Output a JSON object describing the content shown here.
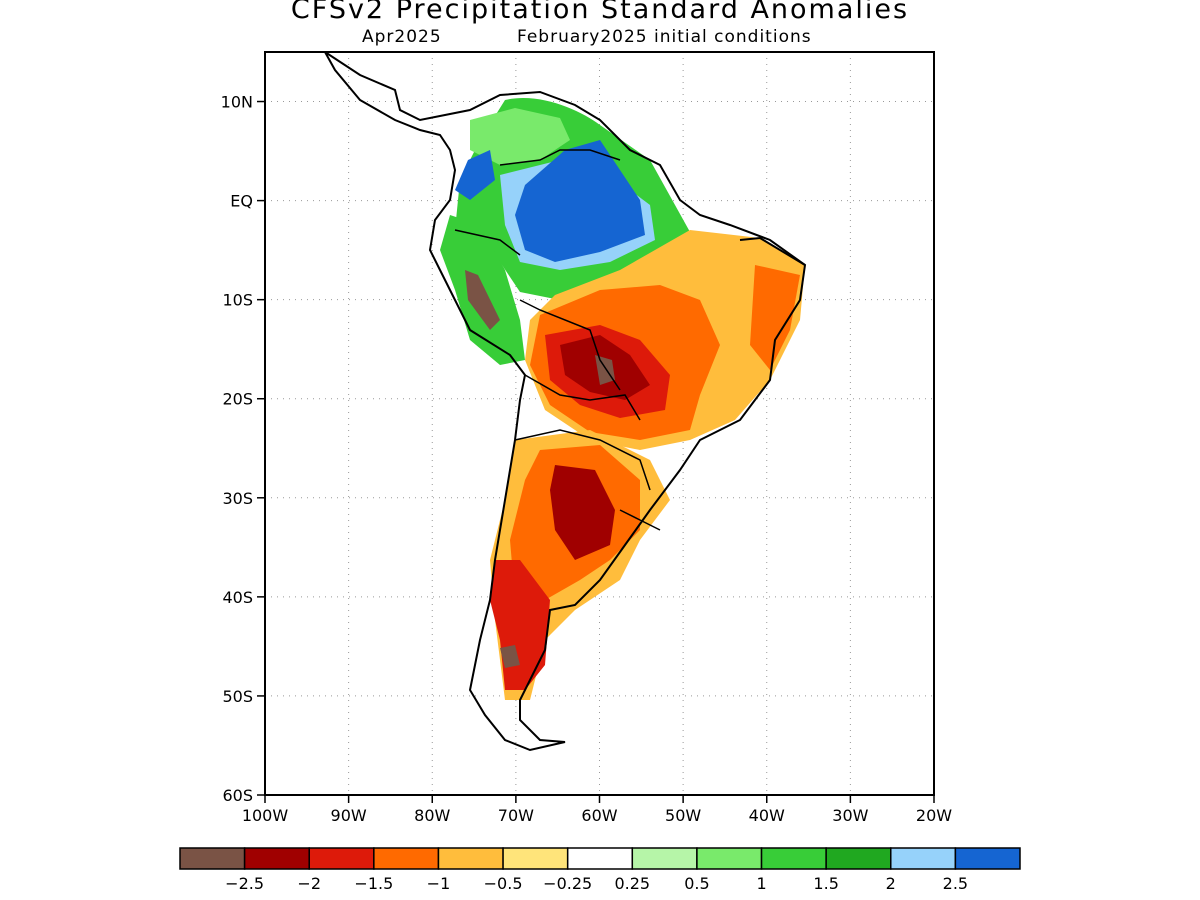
{
  "title": "CFSv2 Precipitation Standard Anomalies",
  "subtitle_left": "Apr2025",
  "subtitle_right": "February2025 initial conditions",
  "map": {
    "lon_range": [
      -100,
      -20
    ],
    "lat_range": [
      -60,
      15
    ],
    "y_ticks": [
      "10N",
      "EQ",
      "10S",
      "20S",
      "30S",
      "40S",
      "50S",
      "60S"
    ],
    "y_tick_values": [
      10,
      0,
      -10,
      -20,
      -30,
      -40,
      -50,
      -60
    ],
    "x_ticks": [
      "100W",
      "90W",
      "80W",
      "70W",
      "60W",
      "50W",
      "40W",
      "30W",
      "20W"
    ],
    "x_tick_values": [
      -100,
      -90,
      -80,
      -70,
      -60,
      -50,
      -40,
      -30,
      -20
    ],
    "grid": "dotted"
  },
  "colorbar": {
    "labels": [
      "−2.5",
      "−2",
      "−1.5",
      "−1",
      "−0.5",
      "−0.25",
      "0.25",
      "0.5",
      "1",
      "1.5",
      "2",
      "2.5"
    ],
    "colors": [
      "#7a5345",
      "#a00000",
      "#dd1a0a",
      "#ff6a00",
      "#ffbd3c",
      "#ffe47a",
      "#ffffff",
      "#b6f5a8",
      "#79ea6b",
      "#38cd38",
      "#20a820",
      "#96d2fa",
      "#1565d2"
    ]
  }
}
